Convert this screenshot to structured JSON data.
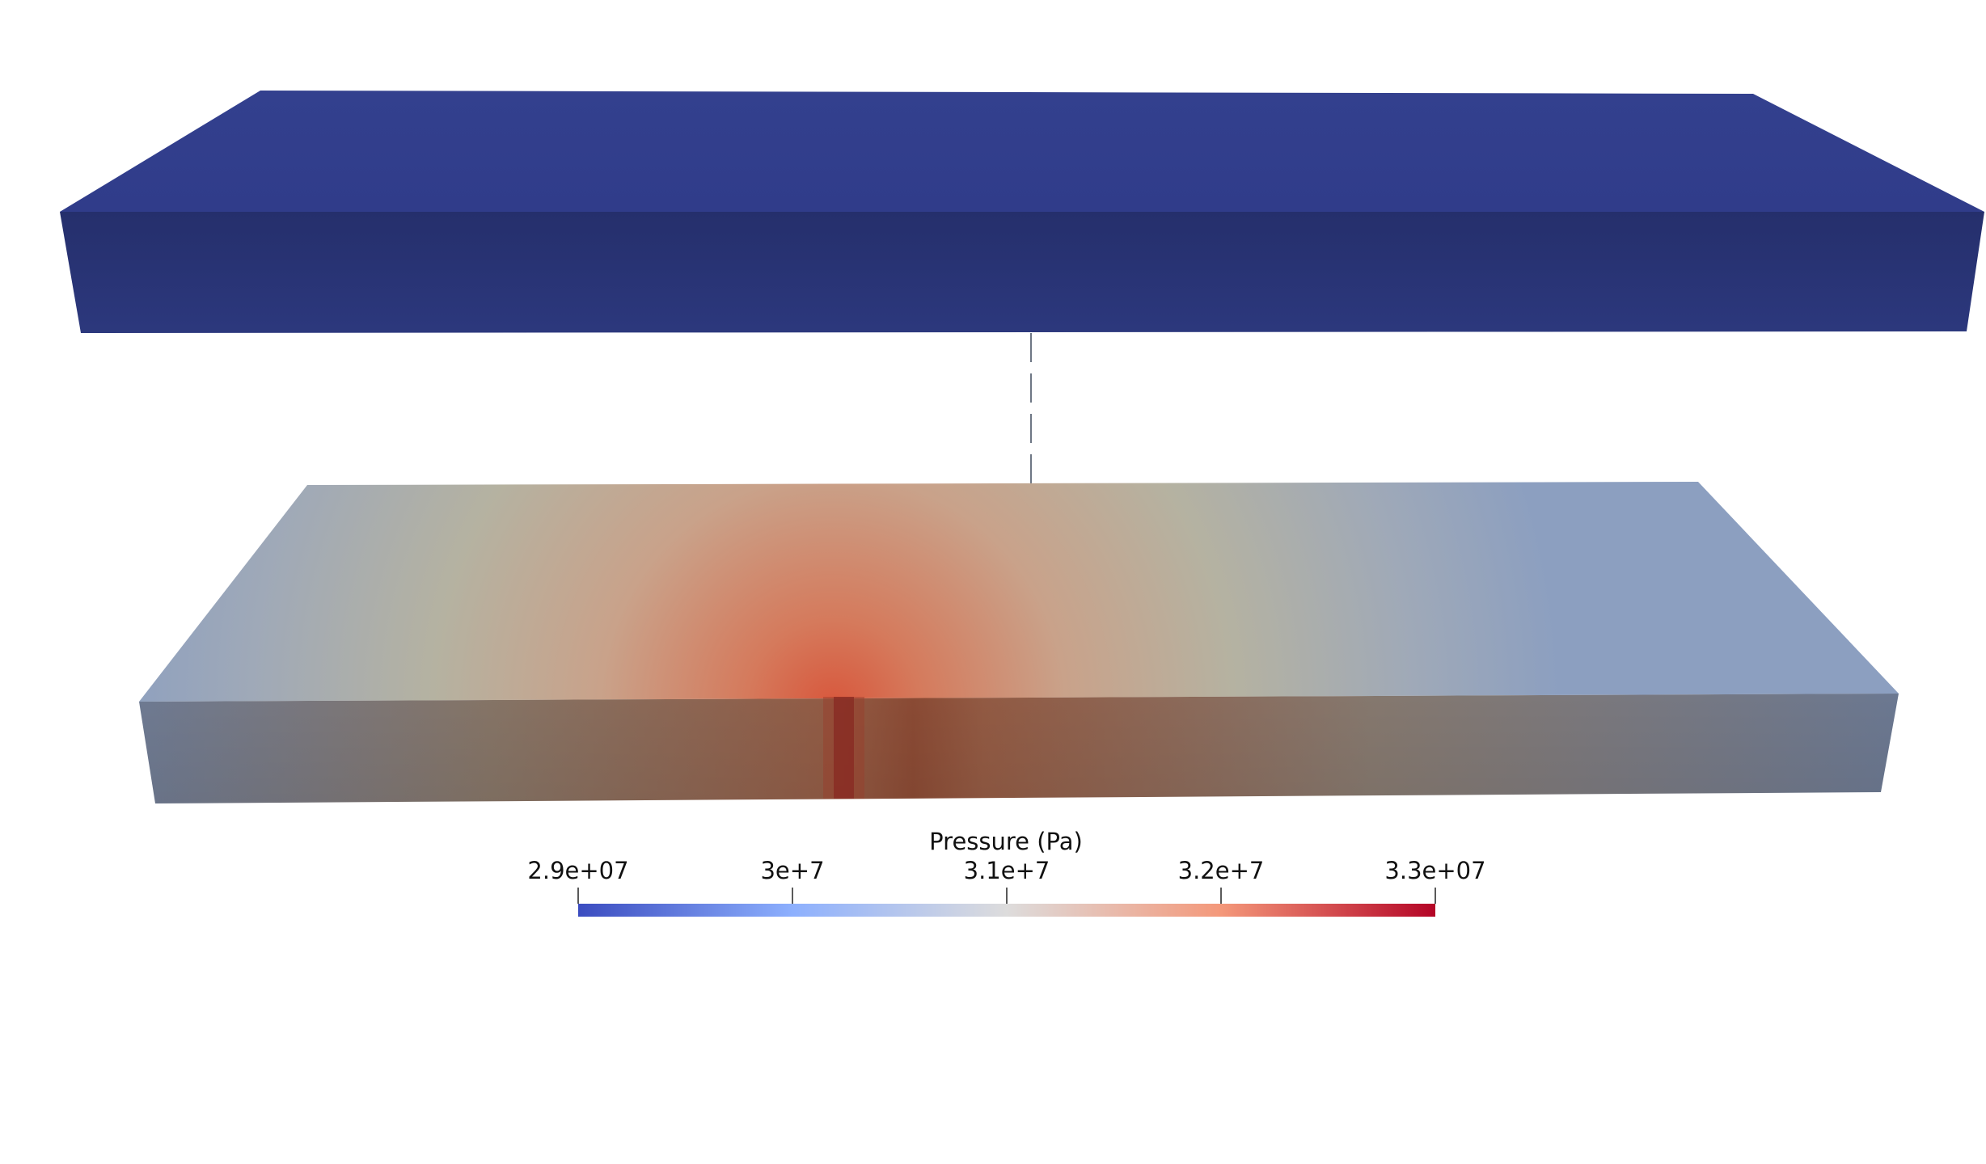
{
  "viewer": {
    "background": "#ffffff"
  },
  "upper_block": {
    "field": "uniform low pressure",
    "top_color": "#33408e",
    "front_color": "#2b3577"
  },
  "lower_block": {
    "field": "pressure plume centered on well",
    "hot_color": "#c9573b",
    "cool_color": "#8ea1c0",
    "front_cool_color": "#6f7e95",
    "front_hot_color": "#8e4a32",
    "well_color": "#8a2a22"
  },
  "connector": {
    "style": "dashed-line",
    "color": "#6e7785"
  },
  "colorbar": {
    "title": "Pressure (Pa)",
    "range": [
      29000000.0,
      33000000.0
    ],
    "colormap": "Cool to Warm",
    "stops": [
      "#3b4cc0",
      "#8db0fe",
      "#dddcdc",
      "#f4987a",
      "#b40426"
    ],
    "ticks": [
      {
        "label": "2.9e+07",
        "value": 29000000.0
      },
      {
        "label": "3e+7",
        "value": 30000000.0
      },
      {
        "label": "3.1e+7",
        "value": 31000000.0
      },
      {
        "label": "3.2e+7",
        "value": 32000000.0
      },
      {
        "label": "3.3e+07",
        "value": 33000000.0
      }
    ]
  }
}
